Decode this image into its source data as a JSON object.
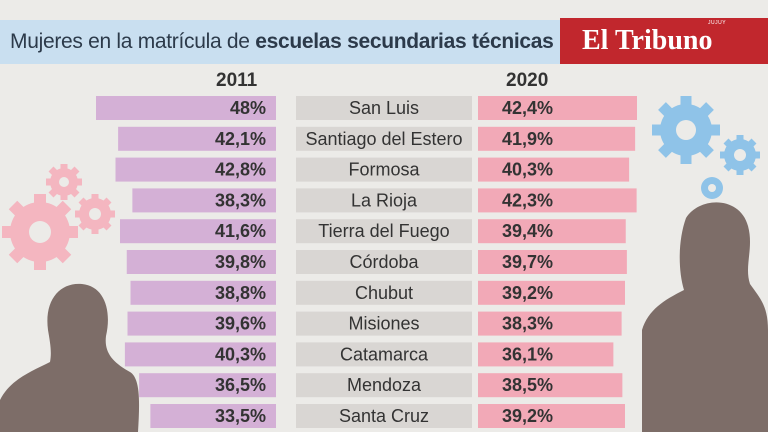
{
  "header": {
    "title_light": "Mujeres en la matrícula de",
    "title_bold": "escuelas secundarias técnicas",
    "brand": "El Tribuno",
    "brand_tag": "JUJUY"
  },
  "chart_data": {
    "type": "bar",
    "categories": [
      "San Luis",
      "Santiago del Estero",
      "Formosa",
      "La Rioja",
      "Tierra del Fuego",
      "Córdoba",
      "Chubut",
      "Misiones",
      "Catamarca",
      "Mendoza",
      "Santa Cruz"
    ],
    "series": [
      {
        "name": "2011",
        "color": "#d4b0d6",
        "values": [
          48,
          42.1,
          42.8,
          38.3,
          41.6,
          39.8,
          38.8,
          39.6,
          40.3,
          36.5,
          33.5
        ],
        "labels": [
          "48%",
          "42,1%",
          "42,8%",
          "38,3%",
          "41,6%",
          "39,8%",
          "38,8%",
          "39,6%",
          "40,3%",
          "36,5%",
          "33,5%"
        ]
      },
      {
        "name": "2020",
        "color": "#f2a9b7",
        "values": [
          42.4,
          41.9,
          40.3,
          42.3,
          39.4,
          39.7,
          39.2,
          38.3,
          36.1,
          38.5,
          39.2
        ],
        "labels": [
          "42,4%",
          "41,9%",
          "40,3%",
          "42,3%",
          "39,4%",
          "39,7%",
          "39,2%",
          "38,3%",
          "36,1%",
          "38,5%",
          "39,2%"
        ]
      }
    ]
  }
}
